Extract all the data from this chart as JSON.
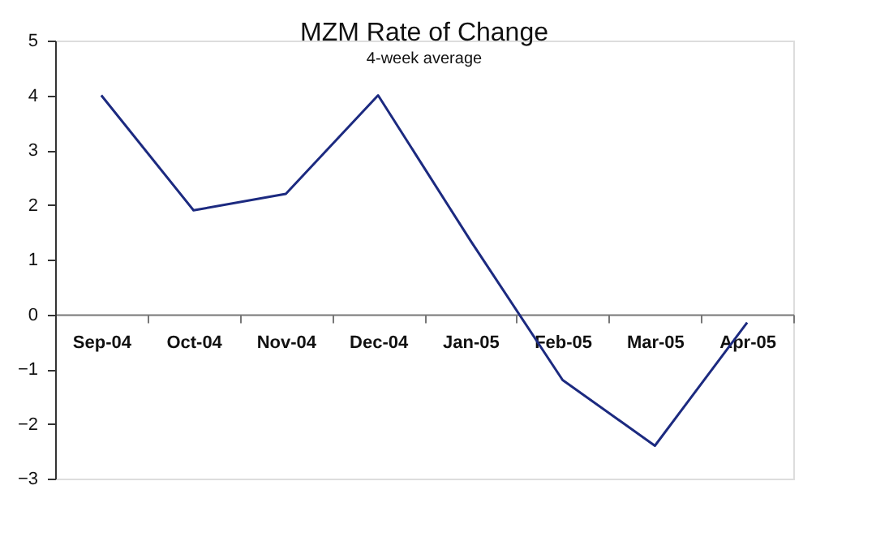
{
  "chart_data": {
    "type": "line",
    "title": "MZM Rate of Change",
    "subtitle": "4-week average",
    "categories": [
      "Sep-04",
      "Oct-04",
      "Nov-04",
      "Dec-04",
      "Jan-05",
      "Feb-05",
      "Mar-05",
      "Apr-05"
    ],
    "series": [
      {
        "color": "#1c2a80",
        "values": [
          4.0,
          1.9,
          2.2,
          4.0,
          1.35,
          -1.2,
          -2.4,
          -0.15
        ]
      }
    ],
    "ylim": [
      -3,
      5
    ],
    "yticks": [
      -3,
      -2,
      -1,
      0,
      1,
      2,
      3,
      4,
      5
    ],
    "grid": false,
    "marker": "none",
    "line_style": "solid"
  }
}
